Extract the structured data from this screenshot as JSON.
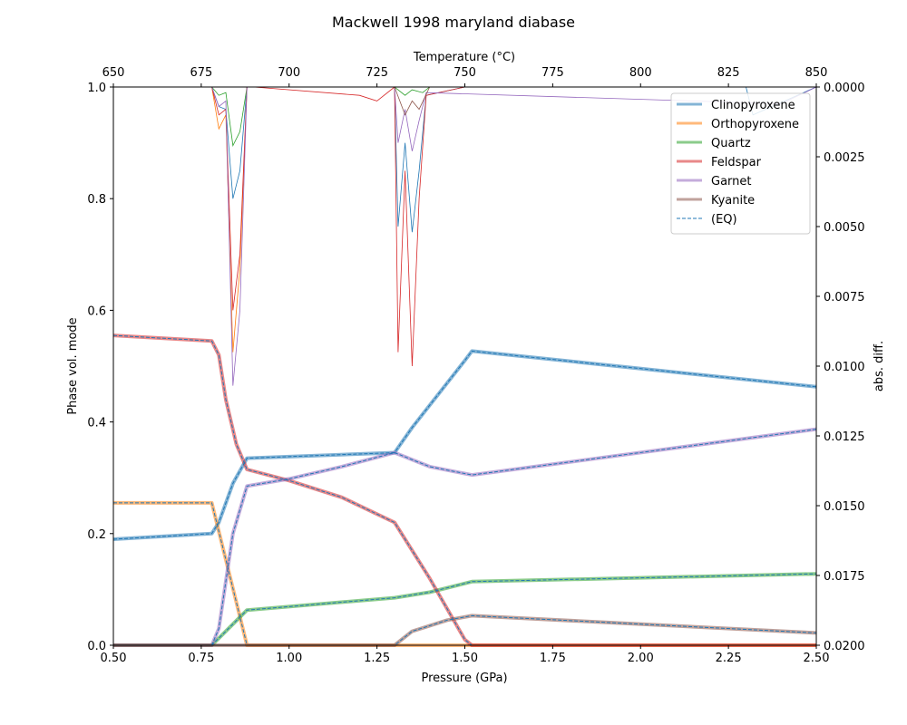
{
  "chart_data": {
    "type": "line",
    "title": "Mackwell 1998 maryland diabase",
    "xlabel": "Pressure (GPa)",
    "ylabel": "Phase vol. mode",
    "x2label": "Temperature (°C)",
    "y2label": "abs. diff.",
    "xlim": [
      0.5,
      2.5
    ],
    "ylim": [
      0,
      1
    ],
    "x2lim": [
      650,
      850
    ],
    "y2lim": [
      0.02,
      0.0
    ],
    "xticks": [
      "0.50",
      "0.75",
      "1.00",
      "1.25",
      "1.50",
      "1.75",
      "2.00",
      "2.25",
      "2.50"
    ],
    "yticks": [
      "0.0",
      "0.2",
      "0.4",
      "0.6",
      "0.8",
      "1.0"
    ],
    "x2ticks": [
      "650",
      "675",
      "700",
      "725",
      "750",
      "775",
      "800",
      "825",
      "850"
    ],
    "y2ticks": [
      "0.0000",
      "0.0025",
      "0.0050",
      "0.0075",
      "0.0100",
      "0.0125",
      "0.0150",
      "0.0175",
      "0.0200"
    ],
    "legend_position": "top-right",
    "eq_label": "(EQ)",
    "eq_color": "#1f77b4",
    "series": [
      {
        "name": "Clinopyroxene",
        "color": "#1f77b4",
        "x": [
          0.5,
          0.78,
          0.8,
          0.84,
          0.88,
          1.3,
          1.35,
          1.5,
          1.52,
          2.5
        ],
        "y": [
          0.19,
          0.2,
          0.22,
          0.29,
          0.335,
          0.345,
          0.39,
          0.51,
          0.527,
          0.463
        ],
        "diff_x": [
          0.78,
          0.8,
          0.82,
          0.84,
          0.86,
          0.88,
          0.9,
          1.3,
          1.31,
          1.33,
          1.35,
          1.37,
          1.39,
          1.5,
          2.3,
          2.32,
          2.5
        ],
        "diff_y": [
          0.0,
          0.0007,
          0.0008,
          0.004,
          0.003,
          0.0,
          0.0,
          0.0,
          0.005,
          0.002,
          0.0052,
          0.003,
          0.0003,
          0.0,
          0.0,
          0.001,
          0.0
        ]
      },
      {
        "name": "Orthopyroxene",
        "color": "#ff7f0e",
        "x": [
          0.5,
          0.78,
          0.88,
          2.5
        ],
        "y": [
          0.255,
          0.255,
          0.0,
          0.0
        ],
        "diff_x": [
          0.78,
          0.8,
          0.82,
          0.84,
          0.86,
          0.88,
          0.9,
          2.5
        ],
        "diff_y": [
          0.0,
          0.0015,
          0.001,
          0.0095,
          0.0065,
          0.0,
          0.0,
          0.0
        ]
      },
      {
        "name": "Quartz",
        "color": "#2ca02c",
        "x": [
          0.5,
          0.78,
          0.88,
          1.3,
          1.4,
          1.52,
          2.5
        ],
        "y": [
          0.0,
          0.0,
          0.063,
          0.085,
          0.095,
          0.114,
          0.128
        ],
        "diff_x": [
          0.78,
          0.8,
          0.82,
          0.84,
          0.86,
          0.88,
          0.9,
          1.3,
          1.33,
          1.35,
          1.38,
          1.4,
          2.5
        ],
        "diff_y": [
          0.0,
          0.0003,
          0.0002,
          0.0021,
          0.0016,
          0.0,
          0.0,
          0.0,
          0.0003,
          0.0001,
          0.0002,
          0.0,
          0.0
        ]
      },
      {
        "name": "Feldspar",
        "color": "#d62728",
        "x": [
          0.5,
          0.78,
          0.8,
          0.82,
          0.85,
          0.88,
          1.0,
          1.15,
          1.3,
          1.4,
          1.5,
          1.52,
          2.5
        ],
        "y": [
          0.555,
          0.545,
          0.52,
          0.44,
          0.36,
          0.315,
          0.295,
          0.265,
          0.22,
          0.12,
          0.01,
          0.0,
          0.0
        ],
        "diff_x": [
          0.78,
          0.8,
          0.82,
          0.84,
          0.86,
          0.88,
          0.9,
          1.2,
          1.25,
          1.3,
          1.31,
          1.33,
          1.35,
          1.37,
          1.39,
          1.5,
          2.5
        ],
        "diff_y": [
          0.0,
          0.001,
          0.0008,
          0.008,
          0.006,
          0.0,
          0.0,
          0.0003,
          0.0005,
          0.0,
          0.0095,
          0.003,
          0.01,
          0.004,
          0.0003,
          0.0,
          0.0
        ]
      },
      {
        "name": "Garnet",
        "color": "#9467bd",
        "x": [
          0.5,
          0.78,
          0.8,
          0.84,
          0.88,
          1.0,
          1.15,
          1.3,
          1.4,
          1.52,
          2.5
        ],
        "y": [
          0.0,
          0.0,
          0.03,
          0.2,
          0.285,
          0.298,
          0.32,
          0.345,
          0.32,
          0.305,
          0.387
        ],
        "diff_x": [
          0.78,
          0.8,
          0.82,
          0.84,
          0.86,
          0.88,
          0.9,
          1.3,
          1.31,
          1.33,
          1.35,
          1.37,
          1.39,
          2.4,
          2.5
        ],
        "diff_y": [
          0.0,
          0.0007,
          0.0005,
          0.0107,
          0.008,
          0.0,
          0.0,
          0.0,
          0.002,
          0.0008,
          0.0023,
          0.0012,
          0.0002,
          0.0006,
          0.0
        ]
      },
      {
        "name": "Kyanite",
        "color": "#8c564b",
        "x": [
          0.5,
          1.3,
          1.35,
          1.45,
          1.52,
          2.5
        ],
        "y": [
          0.0,
          0.0,
          0.025,
          0.045,
          0.053,
          0.022
        ],
        "diff_x": [
          0.5,
          1.3,
          1.33,
          1.35,
          1.37,
          1.4,
          2.5
        ],
        "diff_y": [
          0.0,
          0.0,
          0.001,
          0.0005,
          0.0008,
          0.0,
          0.0
        ]
      }
    ]
  }
}
